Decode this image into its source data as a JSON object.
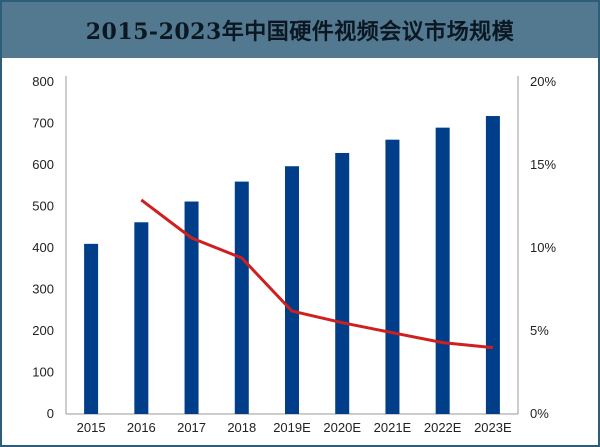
{
  "header": {
    "title": "2015-2023年中国硬件视频会议市场规模"
  },
  "chart_data": {
    "type": "bar",
    "categories": [
      "2015",
      "2016",
      "2017",
      "2018",
      "2019E",
      "2020E",
      "2021E",
      "2022E",
      "2023E"
    ],
    "series": [
      {
        "type": "bar",
        "axis": "left",
        "color": "#003e8a",
        "values": [
          410,
          462,
          512,
          560,
          597,
          629,
          661,
          690,
          718
        ]
      },
      {
        "type": "line",
        "axis": "right",
        "color": "#d01f1f",
        "values": [
          null,
          12.9,
          10.6,
          9.4,
          6.2,
          5.5,
          4.9,
          4.3,
          4.0
        ]
      }
    ],
    "y_left": {
      "min": 0,
      "max": 800,
      "ticks": [
        "0",
        "100",
        "200",
        "300",
        "400",
        "500",
        "600",
        "700",
        "800"
      ]
    },
    "y_right": {
      "min": 0,
      "max": 20,
      "ticks": [
        "0%",
        "5%",
        "10%",
        "15%",
        "20%"
      ]
    },
    "grid": false
  }
}
